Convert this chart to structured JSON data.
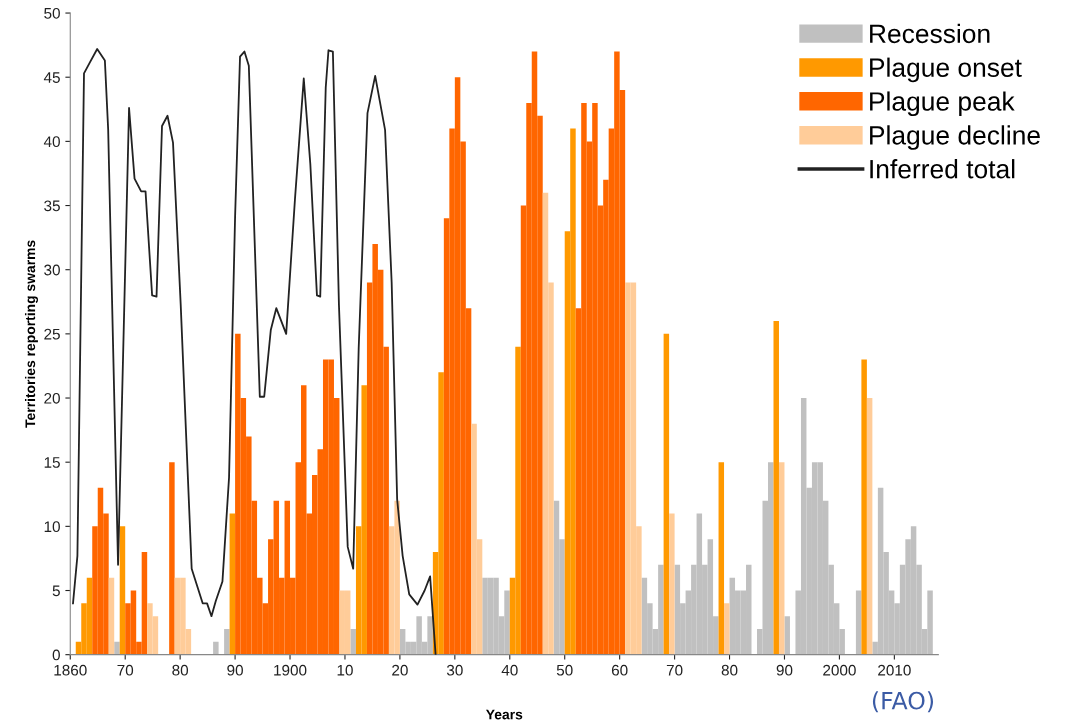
{
  "chart_data": {
    "type": "bar",
    "xlabel": "Years",
    "ylabel": "Territories reporting swarms",
    "annotations": [
      "(FAO)"
    ],
    "xlim": [
      1860,
      2018
    ],
    "xticks": [
      {
        "value": 1860,
        "label": "1860"
      },
      {
        "value": 1870,
        "label": "70"
      },
      {
        "value": 1880,
        "label": "80"
      },
      {
        "value": 1890,
        "label": "90"
      },
      {
        "value": 1900,
        "label": "1900"
      },
      {
        "value": 1910,
        "label": "10"
      },
      {
        "value": 1920,
        "label": "20"
      },
      {
        "value": 1930,
        "label": "30"
      },
      {
        "value": 1940,
        "label": "40"
      },
      {
        "value": 1950,
        "label": "50"
      },
      {
        "value": 1960,
        "label": "60"
      },
      {
        "value": 1970,
        "label": "70"
      },
      {
        "value": 1980,
        "label": "80"
      },
      {
        "value": 1990,
        "label": "90"
      },
      {
        "value": 2000,
        "label": "2000"
      },
      {
        "value": 2010,
        "label": "2010"
      }
    ],
    "ylim": [
      0,
      50
    ],
    "yticks": [
      0,
      5,
      10,
      15,
      20,
      25,
      30,
      35,
      40,
      45,
      50
    ],
    "grid": false,
    "legend": "top right",
    "series": [
      {
        "name": "Recession",
        "color": "#c0c0c0",
        "x": [
          1868,
          1886,
          1888,
          1911,
          1920,
          1921,
          1922,
          1923,
          1924,
          1925,
          1935,
          1936,
          1937,
          1938,
          1939,
          1948,
          1949,
          1964,
          1965,
          1966,
          1967,
          1970,
          1971,
          1972,
          1973,
          1974,
          1975,
          1976,
          1977,
          1980,
          1981,
          1982,
          1983,
          1985,
          1986,
          1987,
          1990,
          1992,
          1993,
          1994,
          1995,
          1996,
          1997,
          1998,
          1999,
          2000,
          2003,
          2006,
          2007,
          2008,
          2009,
          2010,
          2011,
          2012,
          2013,
          2014,
          2015,
          2016
        ],
        "values": [
          1,
          1,
          2,
          2,
          2,
          1,
          1,
          3,
          1,
          3,
          6,
          6,
          6,
          3,
          5,
          12,
          9,
          6,
          4,
          2,
          7,
          7,
          4,
          5,
          7,
          11,
          7,
          9,
          3,
          6,
          5,
          5,
          7,
          2,
          12,
          15,
          3,
          5,
          20,
          13,
          15,
          15,
          12,
          7,
          4,
          2,
          5,
          1,
          13,
          8,
          5,
          4,
          7,
          9,
          10,
          7,
          2,
          5
        ]
      },
      {
        "name": "Plague onset",
        "color": "#ff9900",
        "x": [
          1861,
          1862,
          1863,
          1869,
          1889,
          1912,
          1913,
          1926,
          1927,
          1940,
          1941,
          1950,
          1951,
          1968,
          1978,
          1988,
          2004
        ],
        "values": [
          1,
          4,
          6,
          10,
          11,
          10,
          21,
          8,
          22,
          6,
          24,
          33,
          41,
          25,
          15,
          26,
          23
        ]
      },
      {
        "name": "Plague peak",
        "color": "#ff6600",
        "x": [
          1864,
          1865,
          1866,
          1870,
          1871,
          1872,
          1873,
          1878,
          1890,
          1891,
          1892,
          1893,
          1894,
          1895,
          1896,
          1897,
          1898,
          1899,
          1900,
          1901,
          1902,
          1903,
          1904,
          1905,
          1906,
          1907,
          1908,
          1914,
          1915,
          1916,
          1917,
          1928,
          1929,
          1930,
          1931,
          1932,
          1942,
          1943,
          1944,
          1945,
          1952,
          1953,
          1954,
          1955,
          1956,
          1957,
          1958,
          1959,
          1960
        ],
        "values": [
          10,
          13,
          11,
          4,
          5,
          1,
          8,
          15,
          25,
          20,
          17,
          12,
          6,
          4,
          9,
          12,
          6,
          12,
          6,
          15,
          21,
          11,
          14,
          16,
          23,
          23,
          20,
          29,
          32,
          30,
          24,
          34,
          41,
          45,
          40,
          27,
          35,
          43,
          47,
          42,
          27,
          43,
          40,
          43,
          35,
          37,
          41,
          47,
          44
        ]
      },
      {
        "name": "Plague decline",
        "color": "#ffcc99",
        "x": [
          1867,
          1874,
          1875,
          1879,
          1880,
          1881,
          1909,
          1910,
          1918,
          1919,
          1933,
          1934,
          1946,
          1947,
          1961,
          1962,
          1963,
          1969,
          1979,
          1989,
          2005
        ],
        "values": [
          6,
          4,
          3,
          6,
          6,
          2,
          5,
          5,
          10,
          12,
          18,
          9,
          36,
          29,
          29,
          29,
          10,
          11,
          4,
          15,
          20
        ]
      },
      {
        "name": "Inferred total",
        "type": "line",
        "color": "#222222",
        "x": [
          1860.0,
          1860.8,
          1862.0,
          1863.0,
          1864.4,
          1865.8,
          1866.4,
          1868.2,
          1870.2,
          1871.2,
          1872.4,
          1873.2,
          1874.4,
          1875.2,
          1876.2,
          1877.2,
          1878.2,
          1879.6,
          1881.6,
          1883.6,
          1884.4,
          1885.2,
          1886.0,
          1887.2,
          1888.4,
          1889.5,
          1890.4,
          1891.2,
          1892.0,
          1894.0,
          1894.8,
          1896.0,
          1897.0,
          1898.8,
          1900.4,
          1902.0,
          1903.2,
          1904.4,
          1905.0,
          1906.0,
          1906.5,
          1907.3,
          1908.4,
          1910.0,
          1911.0,
          1912.0,
          1913.6,
          1915.0,
          1916.8,
          1918.0,
          1919.0,
          1920.0,
          1921.2,
          1922.7,
          1924.0,
          1925.0,
          1926.0
        ],
        "values": [
          4.0,
          7.7,
          45.3,
          46.1,
          47.2,
          46.3,
          40.9,
          7.0,
          42.6,
          37.1,
          36.1,
          36.1,
          28.0,
          27.9,
          41.2,
          42.0,
          39.9,
          27.3,
          6.7,
          4.0,
          4.0,
          3.0,
          4.2,
          5.7,
          13.8,
          34.1,
          46.6,
          47.0,
          45.9,
          20.1,
          20.1,
          25.3,
          27.0,
          25.0,
          35.5,
          44.9,
          38.2,
          28.0,
          27.9,
          44.2,
          47.1,
          47.0,
          27.3,
          8.4,
          6.7,
          23.9,
          42.2,
          45.1,
          40.9,
          29.0,
          12.1,
          7.7,
          4.7,
          3.9,
          5.0,
          6.1,
          0
        ]
      }
    ]
  }
}
